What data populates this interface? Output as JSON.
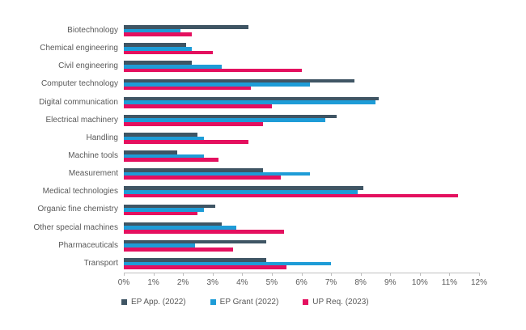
{
  "chart_data": {
    "type": "bar",
    "orientation": "horizontal",
    "title": "",
    "xlabel": "",
    "ylabel": "",
    "xlim": [
      0,
      12
    ],
    "x_tick_labels": [
      "0%",
      "1%",
      "2%",
      "3%",
      "4%",
      "5%",
      "6%",
      "7%",
      "8%",
      "9%",
      "10%",
      "11%",
      "12%"
    ],
    "grid": false,
    "legend_position": "bottom",
    "categories": [
      "Biotechnology",
      "Chemical engineering",
      "Civil engineering",
      "Computer technology",
      "Digital communication",
      "Electrical machinery",
      "Handling",
      "Machine tools",
      "Measurement",
      "Medical technologies",
      "Organic fine chemistry",
      "Other special machines",
      "Pharmaceuticals",
      "Transport"
    ],
    "series": [
      {
        "name": "EP App. (2022)",
        "color": "#3F5564",
        "values": [
          4.2,
          2.1,
          2.3,
          7.8,
          8.6,
          7.2,
          2.5,
          1.8,
          4.7,
          8.1,
          3.1,
          3.3,
          4.8,
          4.8
        ]
      },
      {
        "name": "EP Grant (2022)",
        "color": "#1E9CD7",
        "values": [
          1.9,
          2.3,
          3.3,
          6.3,
          8.5,
          6.8,
          2.7,
          2.7,
          6.3,
          7.9,
          2.7,
          3.8,
          2.4,
          7.0
        ]
      },
      {
        "name": "UP Req. (2023)",
        "color": "#E4105F",
        "values": [
          2.3,
          3.0,
          6.0,
          4.3,
          5.0,
          4.7,
          4.2,
          3.2,
          5.3,
          11.3,
          2.5,
          5.4,
          3.7,
          5.5
        ]
      }
    ]
  },
  "colors": {
    "axis_line": "#BFBFBF",
    "text": "#595959",
    "background": "#FFFFFF"
  }
}
